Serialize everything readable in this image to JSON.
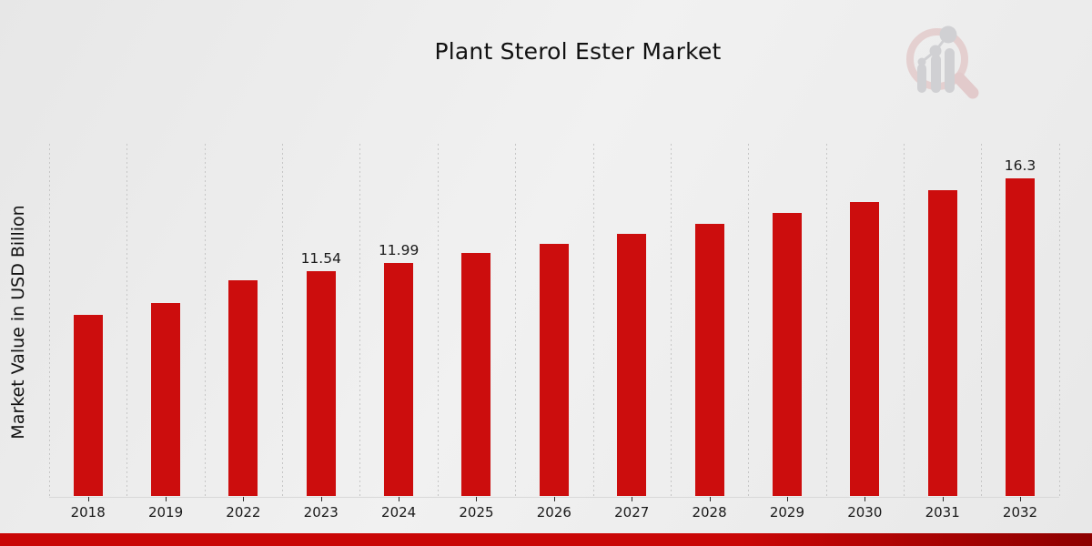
{
  "chart_data": {
    "type": "bar",
    "title": "Plant Sterol Ester Market",
    "xlabel": "",
    "ylabel": "Market Value in USD Billion",
    "categories": [
      "2018",
      "2019",
      "2022",
      "2023",
      "2024",
      "2025",
      "2026",
      "2027",
      "2028",
      "2029",
      "2030",
      "2031",
      "2032"
    ],
    "values": [
      9.31,
      9.92,
      11.11,
      11.54,
      11.99,
      12.46,
      12.95,
      13.45,
      13.98,
      14.53,
      15.09,
      15.68,
      16.3
    ],
    "point_labels": [
      "",
      "",
      "",
      "11.54",
      "11.99",
      "",
      "",
      "",
      "",
      "",
      "",
      "",
      "16.3"
    ],
    "ylim": [
      0,
      18
    ],
    "grid": "vertical-dotted",
    "legend": "none"
  },
  "colors": {
    "bar": "#cc0d0d",
    "grid": "#c6c6c6",
    "text": "#1a1a1a",
    "stripe_left": "#c90606",
    "stripe_right": "#8d0000"
  },
  "branding": {
    "logo_name": "magnifier-bar-chart-watermark"
  }
}
